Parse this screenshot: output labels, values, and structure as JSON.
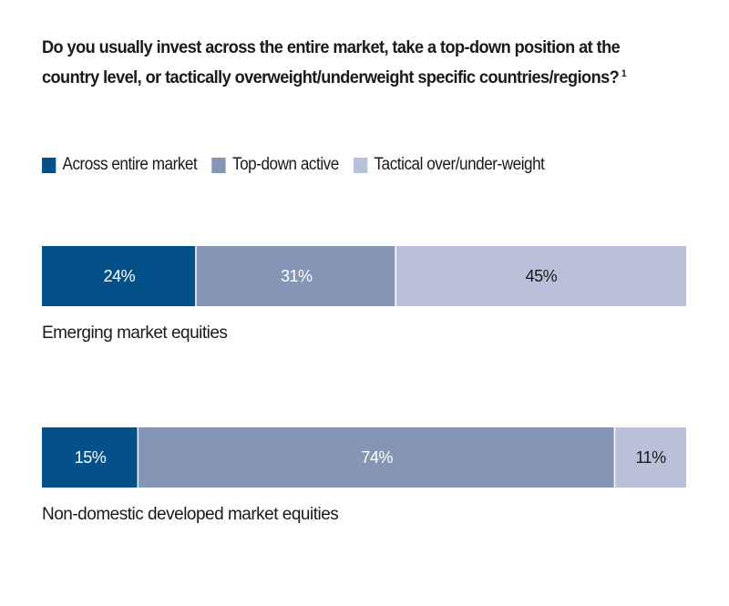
{
  "chart_data": {
    "type": "bar",
    "orientation": "horizontal-stacked-100",
    "title": "Do you usually invest across the entire market, take a top-down position at the country level, or tactically overweight/underweight specific countries/regions?",
    "title_footnote": "1",
    "xlabel": "",
    "ylabel": "",
    "xlim": [
      0,
      100
    ],
    "grid": false,
    "legend_position": "top-left",
    "categories": [
      "Emerging market equities",
      "Non-domestic developed market equities"
    ],
    "series": [
      {
        "name": "Across entire market",
        "color": "#04518a",
        "label_color": "#ffffff",
        "values": [
          24,
          15
        ],
        "labels": [
          "24%",
          "15%"
        ]
      },
      {
        "name": "Top-down active",
        "color": "#8495b6",
        "label_color": "#ffffff",
        "values": [
          31,
          74
        ],
        "labels": [
          "31%",
          "74%"
        ]
      },
      {
        "name": "Tactical over/under-weight",
        "color": "#b8c1d9",
        "label_color": "#1a1a1a",
        "values": [
          45,
          11
        ],
        "labels": [
          "45%",
          "11%"
        ]
      }
    ]
  }
}
